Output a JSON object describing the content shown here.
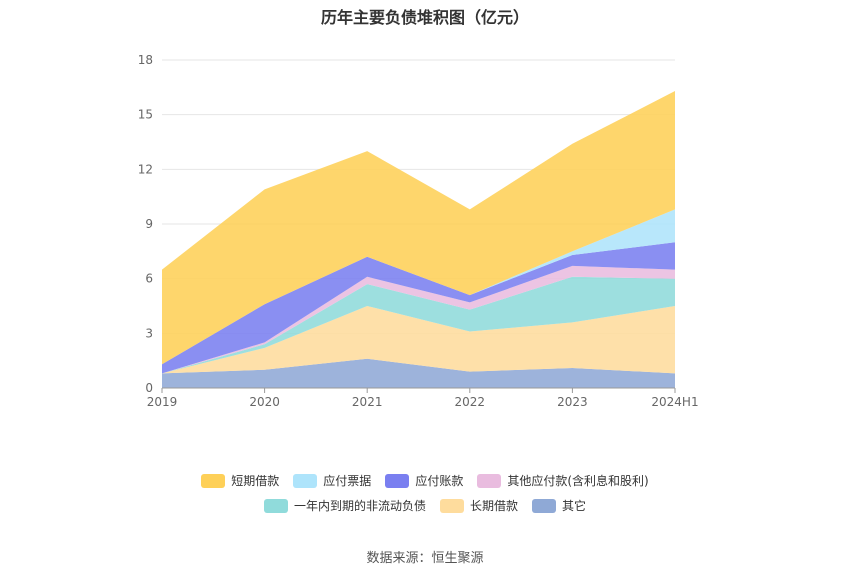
{
  "chart_data": {
    "type": "area",
    "stacked": true,
    "title": "历年主要负债堆积图（亿元）",
    "categories": [
      "2019",
      "2020",
      "2021",
      "2022",
      "2023",
      "2024H1"
    ],
    "ylim": [
      0,
      18
    ],
    "yticks": [
      0,
      3,
      6,
      9,
      12,
      15,
      18
    ],
    "grid": true,
    "legend_position": "bottom",
    "series": [
      {
        "name": "其它",
        "color": "#8fa9d6",
        "values": [
          0.8,
          1.0,
          1.6,
          0.9,
          1.1,
          0.8
        ]
      },
      {
        "name": "长期借款",
        "color": "#fedc9d",
        "values": [
          0.0,
          1.2,
          2.9,
          2.2,
          2.5,
          3.7
        ]
      },
      {
        "name": "一年内到期的非流动负债",
        "color": "#90dbdb",
        "values": [
          0.0,
          0.2,
          1.2,
          1.2,
          2.5,
          1.5
        ]
      },
      {
        "name": "其他应付款(含利息和股利)",
        "color": "#e9bcdf",
        "values": [
          0.0,
          0.1,
          0.4,
          0.4,
          0.6,
          0.5
        ]
      },
      {
        "name": "应付账款",
        "color": "#7a7ff0",
        "values": [
          0.5,
          2.1,
          1.1,
          0.4,
          0.6,
          1.5
        ]
      },
      {
        "name": "应付票据",
        "color": "#aee4fb",
        "values": [
          0.0,
          0.0,
          0.0,
          0.0,
          0.2,
          1.8
        ]
      },
      {
        "name": "短期借款",
        "color": "#fed058",
        "values": [
          5.2,
          6.3,
          5.8,
          4.7,
          5.9,
          6.5
        ]
      }
    ]
  },
  "legend": {
    "row1": [
      "短期借款",
      "应付票据",
      "应付账款",
      "其他应付款(含利息和股利)"
    ],
    "row2": [
      "一年内到期的非流动负债",
      "长期借款",
      "其它"
    ]
  },
  "source": "数据来源：恒生聚源"
}
